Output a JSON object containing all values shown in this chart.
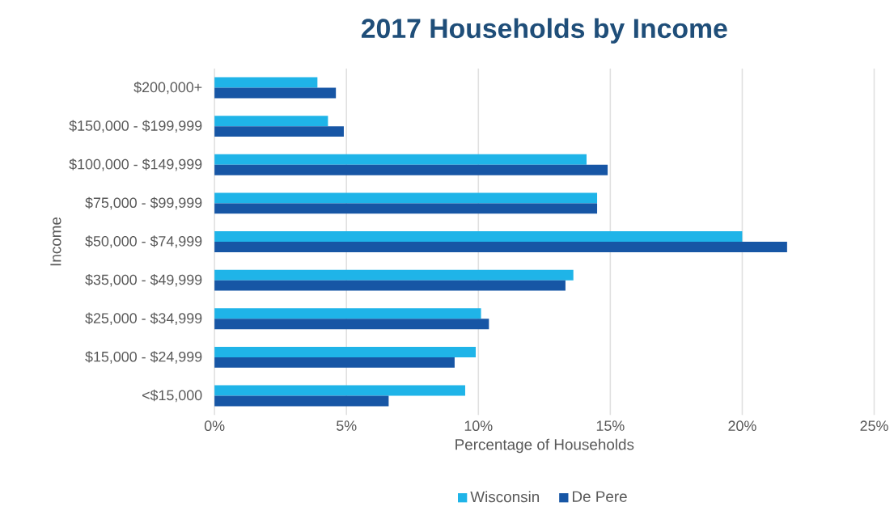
{
  "chart_data": {
    "type": "bar",
    "orientation": "horizontal",
    "title": "2017 Households by Income",
    "xlabel": "Percentage of Households",
    "ylabel": "Income",
    "categories": [
      "$200,000+",
      "$150,000 - $199,999",
      "$100,000 - $149,999",
      "$75,000 - $99,999",
      "$50,000 - $74,999",
      "$35,000 - $49,999",
      "$25,000 - $34,999",
      "$15,000 - $24,999",
      "<$15,000"
    ],
    "series": [
      {
        "name": "Wisconsin",
        "color": "#1fb4e8",
        "values": [
          3.9,
          4.3,
          14.1,
          14.5,
          20.0,
          13.6,
          10.1,
          9.9,
          9.5
        ]
      },
      {
        "name": "De Pere",
        "color": "#1756a5",
        "values": [
          4.6,
          4.9,
          14.9,
          14.5,
          21.7,
          13.3,
          10.4,
          9.1,
          6.6
        ]
      }
    ],
    "xlim": [
      0,
      25
    ],
    "xticks": [
      {
        "value": 0,
        "label": "0%"
      },
      {
        "value": 5,
        "label": "5%"
      },
      {
        "value": 10,
        "label": "10%"
      },
      {
        "value": 15,
        "label": "15%"
      },
      {
        "value": 20,
        "label": "20%"
      },
      {
        "value": 25,
        "label": "25%"
      }
    ],
    "grid": "x",
    "legend": "bottom"
  }
}
